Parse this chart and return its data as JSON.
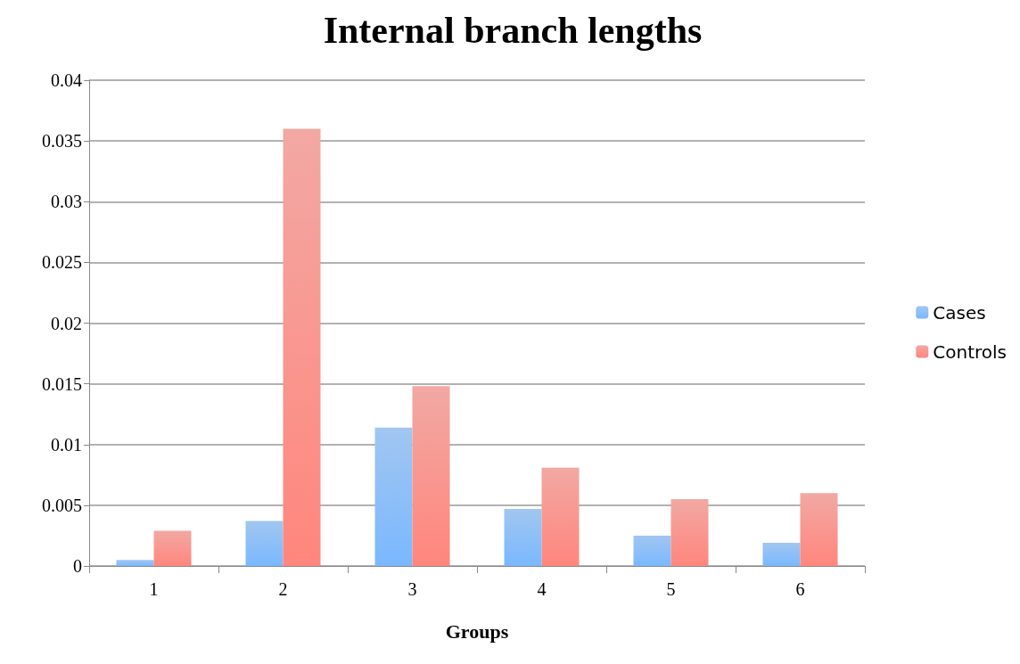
{
  "chart_data": {
    "type": "bar",
    "title": "Internal branch lengths",
    "xlabel": "Groups",
    "categories": [
      "1",
      "2",
      "3",
      "4",
      "5",
      "6"
    ],
    "series": [
      {
        "name": "Cases",
        "color": "#6fa8e8",
        "values": [
          0.0005,
          0.0037,
          0.0114,
          0.0047,
          0.0025,
          0.0019
        ]
      },
      {
        "name": "Controls",
        "color": "#ec7a72",
        "values": [
          0.0029,
          0.036,
          0.0148,
          0.0081,
          0.0055,
          0.006
        ]
      }
    ],
    "ylim": [
      0,
      0.04
    ],
    "yticks": [
      0,
      0.005,
      0.01,
      0.015,
      0.02,
      0.025,
      0.03,
      0.035,
      0.04
    ],
    "grid": "y",
    "legend": "right"
  }
}
